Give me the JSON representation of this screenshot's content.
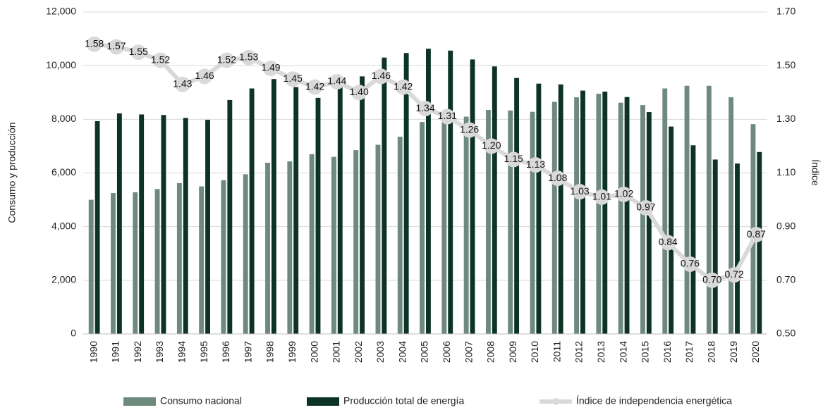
{
  "chart_data": {
    "type": "bar-line",
    "ylabel": "Consumo y producción",
    "y2label": "Índice",
    "categories": [
      "1990",
      "1991",
      "1992",
      "1993",
      "1994",
      "1995",
      "1996",
      "1997",
      "1998",
      "1999",
      "2000",
      "2001",
      "2002",
      "2003",
      "2004",
      "2005",
      "2006",
      "2007",
      "2008",
      "2009",
      "2010",
      "2011",
      "2012",
      "2013",
      "2014",
      "2015",
      "2016",
      "2017",
      "2018",
      "2019",
      "2020"
    ],
    "series": [
      {
        "name": "Consumo nacional",
        "color": "#6e8a7d",
        "type": "bar",
        "values": [
          5000,
          5250,
          5280,
          5400,
          5620,
          5500,
          5730,
          5950,
          6380,
          6430,
          6700,
          6600,
          6850,
          7050,
          7350,
          7900,
          8000,
          8100,
          8350,
          8330,
          8280,
          8650,
          8820,
          8950,
          8620,
          8530,
          9150,
          9250,
          9250,
          8820,
          7820
        ]
      },
      {
        "name": "Producción total de energía",
        "color": "#0d3328",
        "type": "bar",
        "values": [
          7930,
          8220,
          8180,
          8160,
          8050,
          7980,
          8720,
          9150,
          9500,
          9200,
          8800,
          9200,
          9600,
          10300,
          10470,
          10630,
          10560,
          10230,
          9970,
          9540,
          9330,
          9300,
          9070,
          9030,
          8830,
          8270,
          7730,
          7030,
          6500,
          6350,
          6780
        ]
      },
      {
        "name": "Índice de independencia energética",
        "color": "#d9d9d9",
        "type": "line",
        "axis": "y2",
        "values": [
          1.58,
          1.57,
          1.55,
          1.52,
          1.43,
          1.46,
          1.52,
          1.53,
          1.49,
          1.45,
          1.42,
          1.44,
          1.4,
          1.46,
          1.42,
          1.34,
          1.31,
          1.26,
          1.2,
          1.15,
          1.13,
          1.08,
          1.03,
          1.01,
          1.02,
          0.97,
          0.84,
          0.76,
          0.7,
          0.72,
          0.87
        ],
        "value_labels": [
          "1.58",
          "1.57",
          "1.55",
          "1.52",
          "1.43",
          "1.46",
          "1.52",
          "1.53",
          "1.49",
          "1.45",
          "1.42",
          "1.44",
          "1.40",
          "1.46",
          "1.42",
          "1.34",
          "1.31",
          "1.26",
          "1.20",
          "1.15",
          "1.13",
          "1.08",
          "1.03",
          "1.01",
          "1.02",
          "0.97",
          "0.84",
          "0.76",
          "0.70",
          "0.72",
          "0.87"
        ]
      }
    ],
    "ylim": [
      0,
      12000
    ],
    "yticks": [
      0,
      {
        "value": 2000,
        "label": "2,000"
      },
      {
        "value": 4000,
        "label": "4,000"
      },
      {
        "value": 6000,
        "label": "6,000"
      },
      {
        "value": 8000,
        "label": "8,000"
      },
      {
        "value": 10000,
        "label": "10,000"
      },
      {
        "value": 12000,
        "label": "12,000"
      }
    ],
    "y2lim": [
      0.5,
      1.7
    ],
    "y2ticks": [
      {
        "value": 0.5,
        "label": "0.50"
      },
      {
        "value": 0.7,
        "label": "0.70"
      },
      {
        "value": 0.9,
        "label": "0.90"
      },
      {
        "value": 1.1,
        "label": "1.10"
      },
      {
        "value": 1.3,
        "label": "1.30"
      },
      {
        "value": 1.5,
        "label": "1.50"
      },
      {
        "value": 1.7,
        "label": "1.70"
      }
    ],
    "grid": true,
    "legend": "bottom"
  }
}
